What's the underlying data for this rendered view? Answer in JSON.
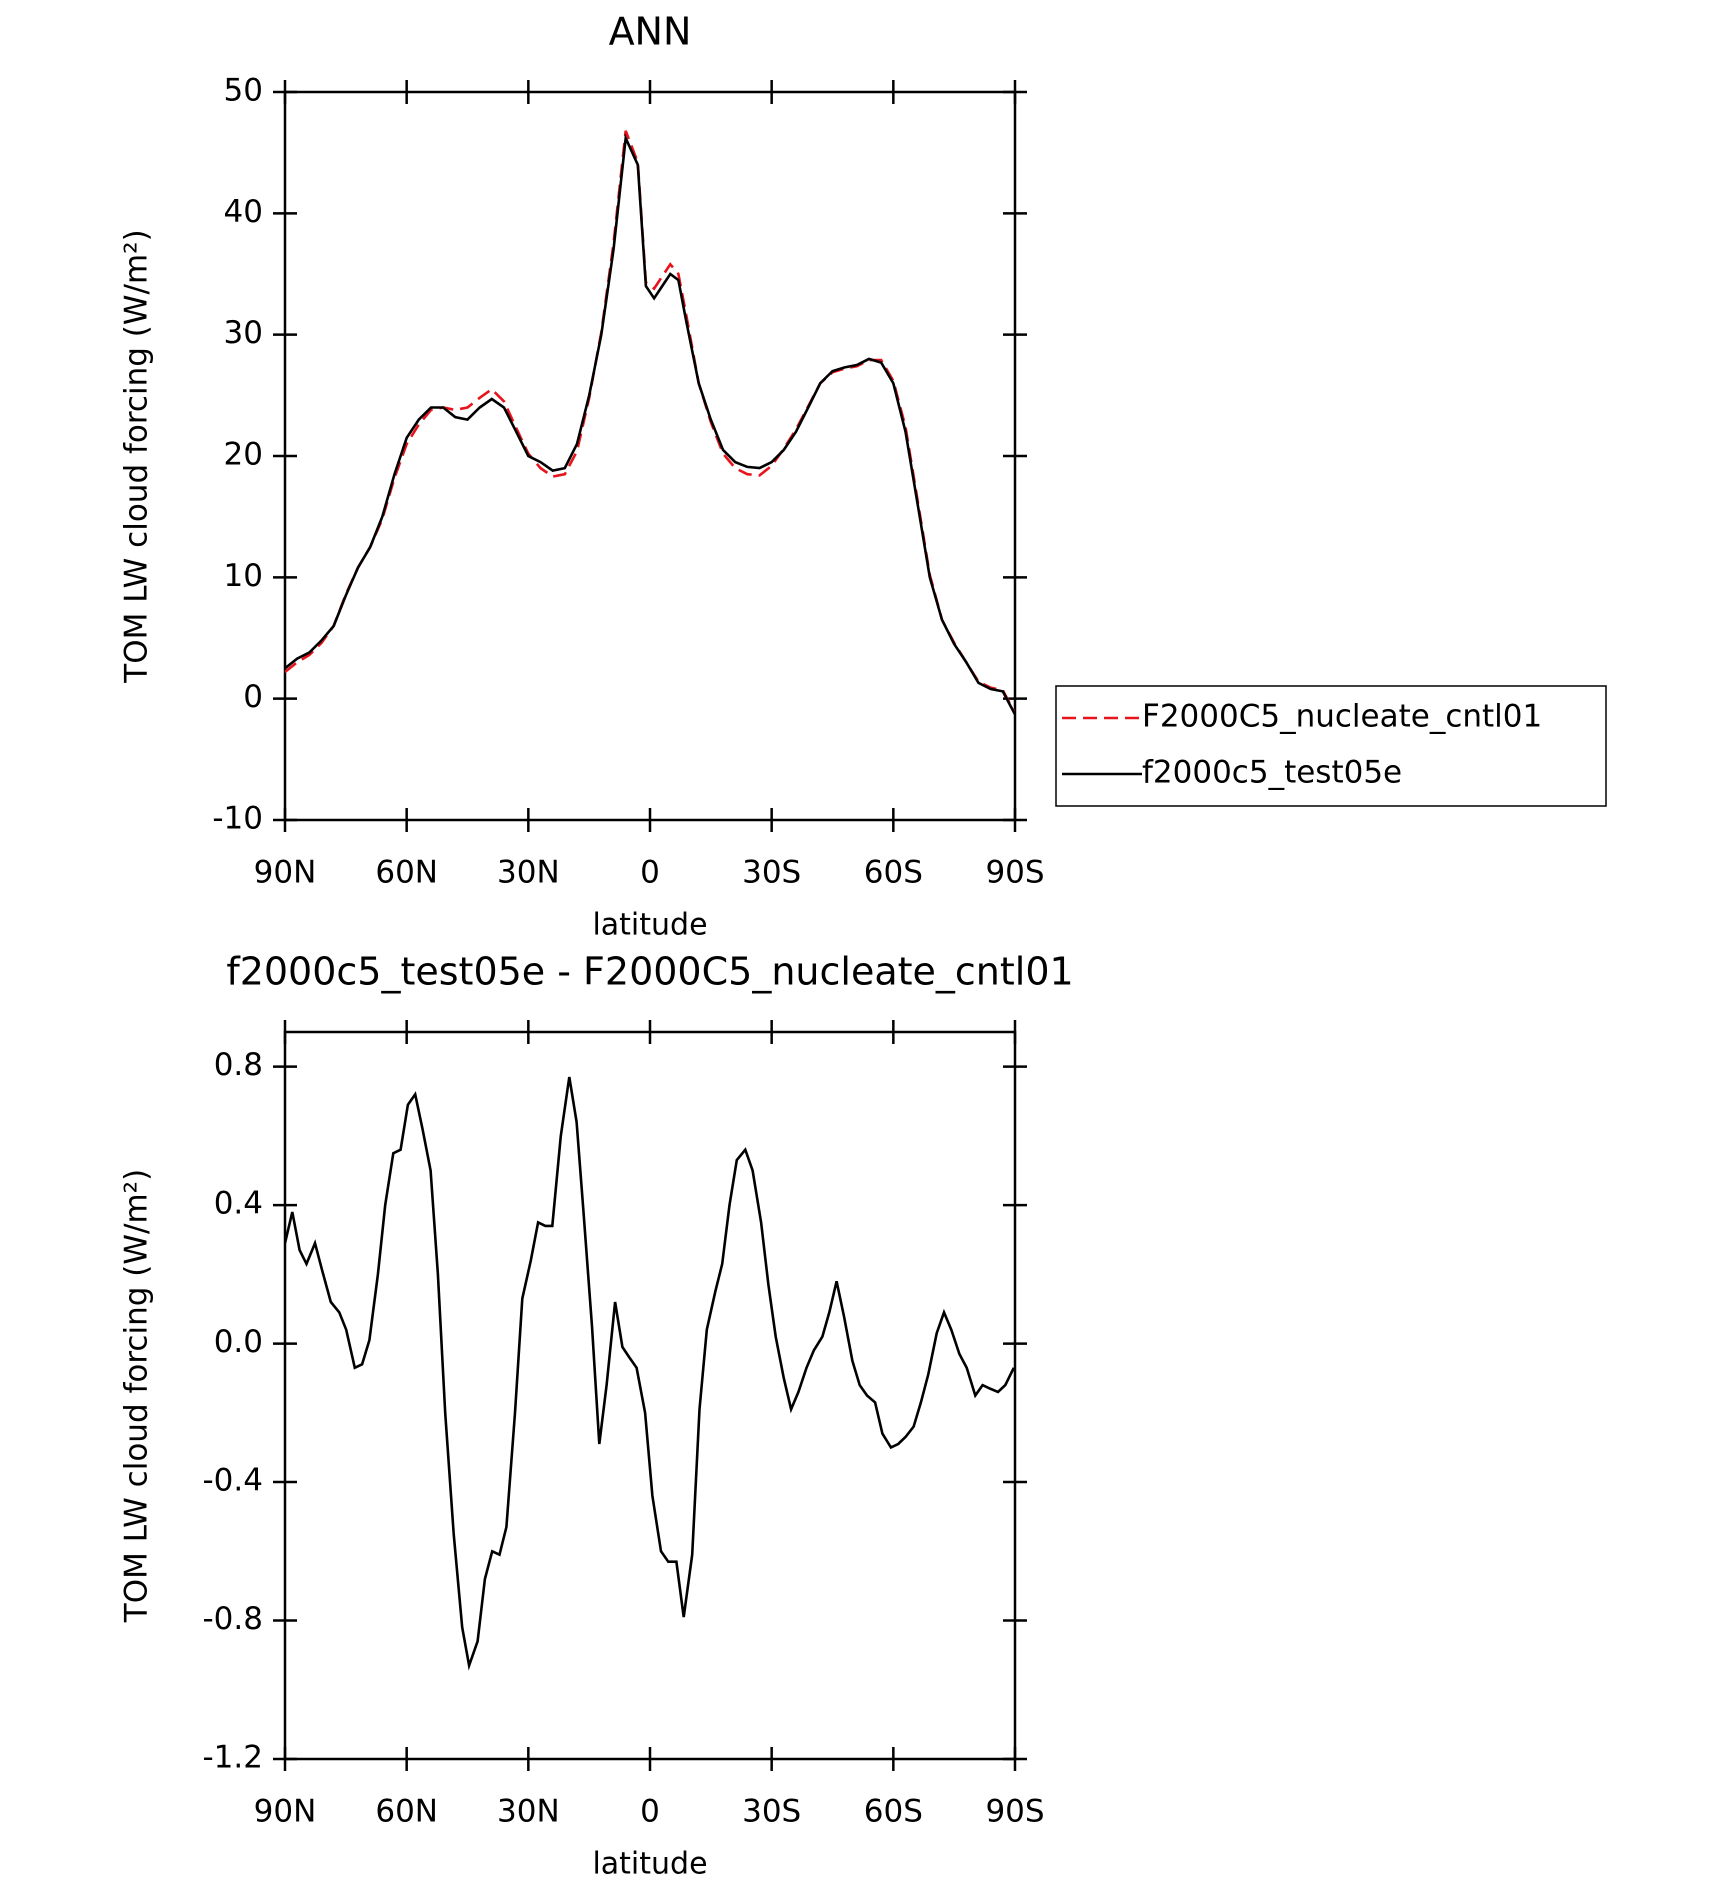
{
  "chart_data": [
    {
      "type": "line",
      "title": "ANN",
      "xlabel": "latitude",
      "ylabel": "TOM LW cloud forcing (W/m²)",
      "xlim": [
        90,
        -90
      ],
      "ylim": [
        -10,
        50
      ],
      "xticks": [
        {
          "value": 90,
          "label": "90N"
        },
        {
          "value": 60,
          "label": "60N"
        },
        {
          "value": 30,
          "label": "30N"
        },
        0,
        {
          "value": -30,
          "label": "30S"
        },
        {
          "value": -60,
          "label": "60S"
        },
        {
          "value": -90,
          "label": "90S"
        }
      ],
      "yticks": [
        -10,
        0,
        10,
        20,
        30,
        40,
        50
      ],
      "legend": "right",
      "x": [
        90,
        87,
        84,
        81,
        78,
        75,
        72,
        69,
        66,
        63,
        60,
        57,
        54,
        51,
        48,
        45,
        42,
        39,
        36,
        33,
        30,
        27,
        24,
        21,
        18,
        15,
        12,
        9,
        6,
        3,
        1,
        -1,
        -3,
        -5,
        -7,
        -9,
        -12,
        -15,
        -18,
        -21,
        -24,
        -27,
        -30,
        -33,
        -36,
        -39,
        -42,
        -45,
        -48,
        -51,
        -54,
        -57,
        -60,
        -63,
        -66,
        -69,
        -72,
        -75,
        -78,
        -81,
        -84,
        -87,
        -90
      ],
      "series": [
        {
          "name": "F2000C5_nucleate_cntl01",
          "color": "#e8141c",
          "style": "dashed",
          "values": [
            2.2,
            3.0,
            3.6,
            4.6,
            6.0,
            8.6,
            10.8,
            12.5,
            14.8,
            18.2,
            21.0,
            22.6,
            23.8,
            24.0,
            23.8,
            24.0,
            24.8,
            25.5,
            24.5,
            22.3,
            20.2,
            19.0,
            18.3,
            18.5,
            20.4,
            24.8,
            30.2,
            37.5,
            46.8,
            44.2,
            34.3,
            33.8,
            34.8,
            35.8,
            35.0,
            31.5,
            26.0,
            22.8,
            20.2,
            19.0,
            18.5,
            18.4,
            19.2,
            20.6,
            22.2,
            24.1,
            26.0,
            26.9,
            27.2,
            27.4,
            27.9,
            27.9,
            26.2,
            22.4,
            16.3,
            10.2,
            6.5,
            4.6,
            3.0,
            1.4,
            0.9,
            0.7,
            -1.2
          ]
        },
        {
          "name": "f2000c5_test05e",
          "color": "#000000",
          "style": "solid",
          "values": [
            2.5,
            3.3,
            3.8,
            4.8,
            6.0,
            8.5,
            10.8,
            12.5,
            15.0,
            18.5,
            21.5,
            23.0,
            24.0,
            24.0,
            23.2,
            23.0,
            24.0,
            24.7,
            24.0,
            22.0,
            20.0,
            19.5,
            18.8,
            19.0,
            21.0,
            25.0,
            30.0,
            37.0,
            46.2,
            44.0,
            34.0,
            33.0,
            34.0,
            35.0,
            34.5,
            31.0,
            26.0,
            23.0,
            20.5,
            19.5,
            19.1,
            19.0,
            19.5,
            20.5,
            22.0,
            24.0,
            26.0,
            27.0,
            27.3,
            27.5,
            28.0,
            27.7,
            26.0,
            22.0,
            16.0,
            10.0,
            6.5,
            4.5,
            3.0,
            1.3,
            0.8,
            0.6,
            -1.3
          ]
        }
      ]
    },
    {
      "type": "line",
      "title": "f2000c5_test05e - F2000C5_nucleate_cntl01",
      "xlabel": "latitude",
      "ylabel": "TOM LW cloud forcing (W/m²)",
      "xlim": [
        90,
        -90
      ],
      "ylim": [
        -1.2,
        0.9
      ],
      "xticks": [
        {
          "value": 90,
          "label": "90N"
        },
        {
          "value": 60,
          "label": "60N"
        },
        {
          "value": 30,
          "label": "30N"
        },
        0,
        {
          "value": -30,
          "label": "30S"
        },
        {
          "value": -60,
          "label": "60S"
        },
        {
          "value": -90,
          "label": "90S"
        }
      ],
      "yticks": [
        -1.2,
        -0.8,
        -0.4,
        {
          "value": 0,
          "label": "0.0"
        },
        0.4,
        0.8
      ],
      "x": [
        90,
        88.2,
        86.4,
        84.7,
        82.6,
        80.8,
        78.7,
        76.6,
        74.9,
        72.8,
        71,
        69.2,
        67.1,
        65.3,
        63.3,
        61.5,
        59.7,
        57.9,
        56.1,
        54.1,
        52.3,
        50.5,
        48.4,
        46.3,
        44.6,
        42.5,
        40.7,
        38.9,
        37.1,
        35.4,
        33.3,
        31.5,
        29.4,
        27.6,
        25.8,
        24.1,
        22,
        19.9,
        18.1,
        16.4,
        14.3,
        12.5,
        10.7,
        8.6,
        6.8,
        5.1,
        3.3,
        1.2,
        -0.6,
        -2.7,
        -4.5,
        -6.5,
        -8.3,
        -10.4,
        -12.2,
        -14,
        -16.1,
        -17.8,
        -19.6,
        -21.4,
        -23.5,
        -25.3,
        -27.4,
        -29.2,
        -31,
        -33,
        -34.8,
        -36.6,
        -38.6,
        -40.4,
        -42.5,
        -44.2,
        -46,
        -47.8,
        -49.9,
        -51.7,
        -53.5,
        -55.5,
        -57.3,
        -59.4,
        -61.2,
        -63,
        -65,
        -66.8,
        -68.6,
        -70.7,
        -72.5,
        -74.3,
        -76.3,
        -78.1,
        -80.2,
        -82,
        -83.8,
        -85.8,
        -87.6,
        -89.7
      ],
      "series": [
        {
          "color": "#000000",
          "style": "solid",
          "values": [
            0.29,
            0.38,
            0.27,
            0.23,
            0.29,
            0.21,
            0.12,
            0.09,
            0.04,
            -0.07,
            -0.06,
            0.01,
            0.2,
            0.4,
            0.55,
            0.56,
            0.69,
            0.72,
            0.62,
            0.5,
            0.2,
            -0.2,
            -0.55,
            -0.82,
            -0.93,
            -0.86,
            -0.68,
            -0.6,
            -0.61,
            -0.53,
            -0.2,
            0.13,
            0.24,
            0.35,
            0.34,
            0.34,
            0.6,
            0.77,
            0.64,
            0.38,
            0.05,
            -0.29,
            -0.12,
            0.12,
            -0.01,
            -0.04,
            -0.07,
            -0.2,
            -0.44,
            -0.6,
            -0.63,
            -0.63,
            -0.79,
            -0.61,
            -0.19,
            0.04,
            0.15,
            0.23,
            0.4,
            0.53,
            0.56,
            0.5,
            0.35,
            0.17,
            0.02,
            -0.1,
            -0.19,
            -0.14,
            -0.07,
            -0.02,
            0.02,
            0.09,
            0.18,
            0.08,
            -0.05,
            -0.12,
            -0.15,
            -0.17,
            -0.26,
            -0.3,
            -0.29,
            -0.27,
            -0.24,
            -0.17,
            -0.09,
            0.03,
            0.09,
            0.04,
            -0.03,
            -0.07,
            -0.15,
            -0.12,
            -0.13,
            -0.14,
            -0.12,
            -0.07
          ]
        }
      ]
    }
  ]
}
